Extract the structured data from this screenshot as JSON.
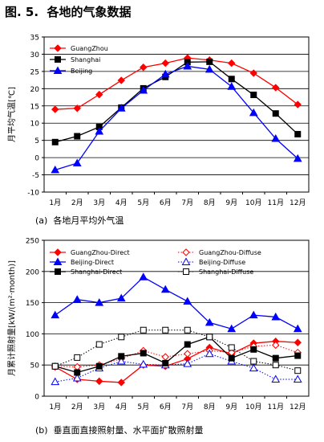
{
  "figure_title": "图. 5.  各地的气象数据",
  "chart_data": [
    {
      "type": "line",
      "caption": "(a)  各地月平均外气温",
      "ylabel": "月平均气温[℃]",
      "xlabel": "",
      "categories": [
        "1月",
        "2月",
        "3月",
        "4月",
        "5月",
        "6月",
        "7月",
        "8月",
        "9月",
        "10月",
        "11月",
        "12月"
      ],
      "ylim": [
        -10,
        35
      ],
      "yticks": [
        -10,
        -5,
        0,
        5,
        10,
        15,
        20,
        25,
        30,
        35
      ],
      "grid": "horizontal",
      "legend_position": "top-left",
      "series": [
        {
          "name": "GuangZhou",
          "color": "#ff0000",
          "marker": "diamond",
          "style": "solid",
          "values": [
            14.0,
            14.3,
            18.3,
            22.4,
            26.2,
            27.4,
            28.9,
            28.3,
            27.4,
            24.5,
            20.3,
            15.4
          ]
        },
        {
          "name": "Shanghai",
          "color": "#000000",
          "marker": "square",
          "style": "solid",
          "values": [
            4.5,
            6.2,
            8.9,
            14.5,
            20.1,
            23.4,
            27.7,
            27.8,
            22.8,
            18.2,
            12.8,
            6.8
          ]
        },
        {
          "name": "Beijing",
          "color": "#0000ff",
          "marker": "triangle",
          "style": "solid",
          "values": [
            -3.6,
            -1.6,
            7.6,
            14.3,
            19.5,
            24.2,
            26.5,
            25.6,
            20.6,
            13.0,
            5.5,
            -0.3
          ]
        }
      ]
    },
    {
      "type": "line",
      "caption": "(b)  垂直面直接照射量、水平面扩散照射量",
      "ylabel": "月累计照射量[kW/(m²·month)]",
      "xlabel": "",
      "categories": [
        "1月",
        "2月",
        "3月",
        "4月",
        "5月",
        "6月",
        "7月",
        "8月",
        "9月",
        "10月",
        "11月",
        "12月"
      ],
      "ylim": [
        0,
        250
      ],
      "yticks": [
        0,
        50,
        100,
        150,
        200,
        250
      ],
      "grid": "horizontal",
      "legend_position": "top",
      "series": [
        {
          "name": "GuangZhou-Direct",
          "color": "#ff0000",
          "marker": "diamond",
          "style": "solid",
          "values": [
            47,
            27,
            24,
            22,
            50,
            48,
            60,
            78,
            68,
            85,
            88,
            86
          ]
        },
        {
          "name": "GuangZhou-Diffuse",
          "color": "#ff0000",
          "marker": "diamond-open",
          "style": "dotted",
          "values": [
            48,
            47,
            50,
            60,
            73,
            63,
            68,
            73,
            70,
            80,
            82,
            70
          ]
        },
        {
          "name": "Beijing-Direct",
          "color": "#0000ff",
          "marker": "triangle",
          "style": "solid",
          "values": [
            130,
            155,
            150,
            157,
            191,
            171,
            152,
            118,
            108,
            130,
            127,
            108
          ]
        },
        {
          "name": "Beijing-Diffuse",
          "color": "#0000ff",
          "marker": "triangle-open",
          "style": "dotted",
          "values": [
            23,
            29,
            45,
            56,
            51,
            50,
            52,
            68,
            56,
            45,
            27,
            27
          ]
        },
        {
          "name": "Shanghai-Direct",
          "color": "#000000",
          "marker": "square",
          "style": "solid",
          "values": [
            48,
            38,
            48,
            64,
            69,
            53,
            83,
            95,
            61,
            75,
            61,
            65
          ]
        },
        {
          "name": "Shanghai-Diffuse",
          "color": "#000000",
          "marker": "square-open",
          "style": "dotted",
          "values": [
            48,
            62,
            83,
            95,
            106,
            106,
            106,
            95,
            78,
            56,
            50,
            41
          ]
        }
      ]
    }
  ]
}
